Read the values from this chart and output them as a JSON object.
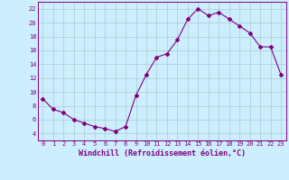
{
  "x": [
    0,
    1,
    2,
    3,
    4,
    5,
    6,
    7,
    8,
    9,
    10,
    11,
    12,
    13,
    14,
    15,
    16,
    17,
    18,
    19,
    20,
    21,
    22,
    23
  ],
  "y": [
    9.0,
    7.5,
    7.0,
    6.0,
    5.5,
    5.0,
    4.7,
    4.3,
    5.0,
    9.5,
    12.5,
    15.0,
    15.5,
    17.5,
    20.5,
    22.0,
    21.0,
    21.5,
    20.5,
    19.5,
    18.5,
    16.5,
    16.5,
    12.5
  ],
  "line_color": "#800080",
  "marker": "D",
  "marker_size": 2.0,
  "bg_color": "#cceeff",
  "grid_color": "#aacccc",
  "xlabel": "Windchill (Refroidissement éolien,°C)",
  "xlabel_color": "#800080",
  "tick_color": "#800080",
  "ylim": [
    3,
    23
  ],
  "xlim": [
    -0.5,
    23.5
  ],
  "yticks": [
    4,
    6,
    8,
    10,
    12,
    14,
    16,
    18,
    20,
    22
  ],
  "xticks": [
    0,
    1,
    2,
    3,
    4,
    5,
    6,
    7,
    8,
    9,
    10,
    11,
    12,
    13,
    14,
    15,
    16,
    17,
    18,
    19,
    20,
    21,
    22,
    23
  ],
  "tick_fontsize": 5.0,
  "xlabel_fontsize": 6.0,
  "linewidth": 0.8
}
